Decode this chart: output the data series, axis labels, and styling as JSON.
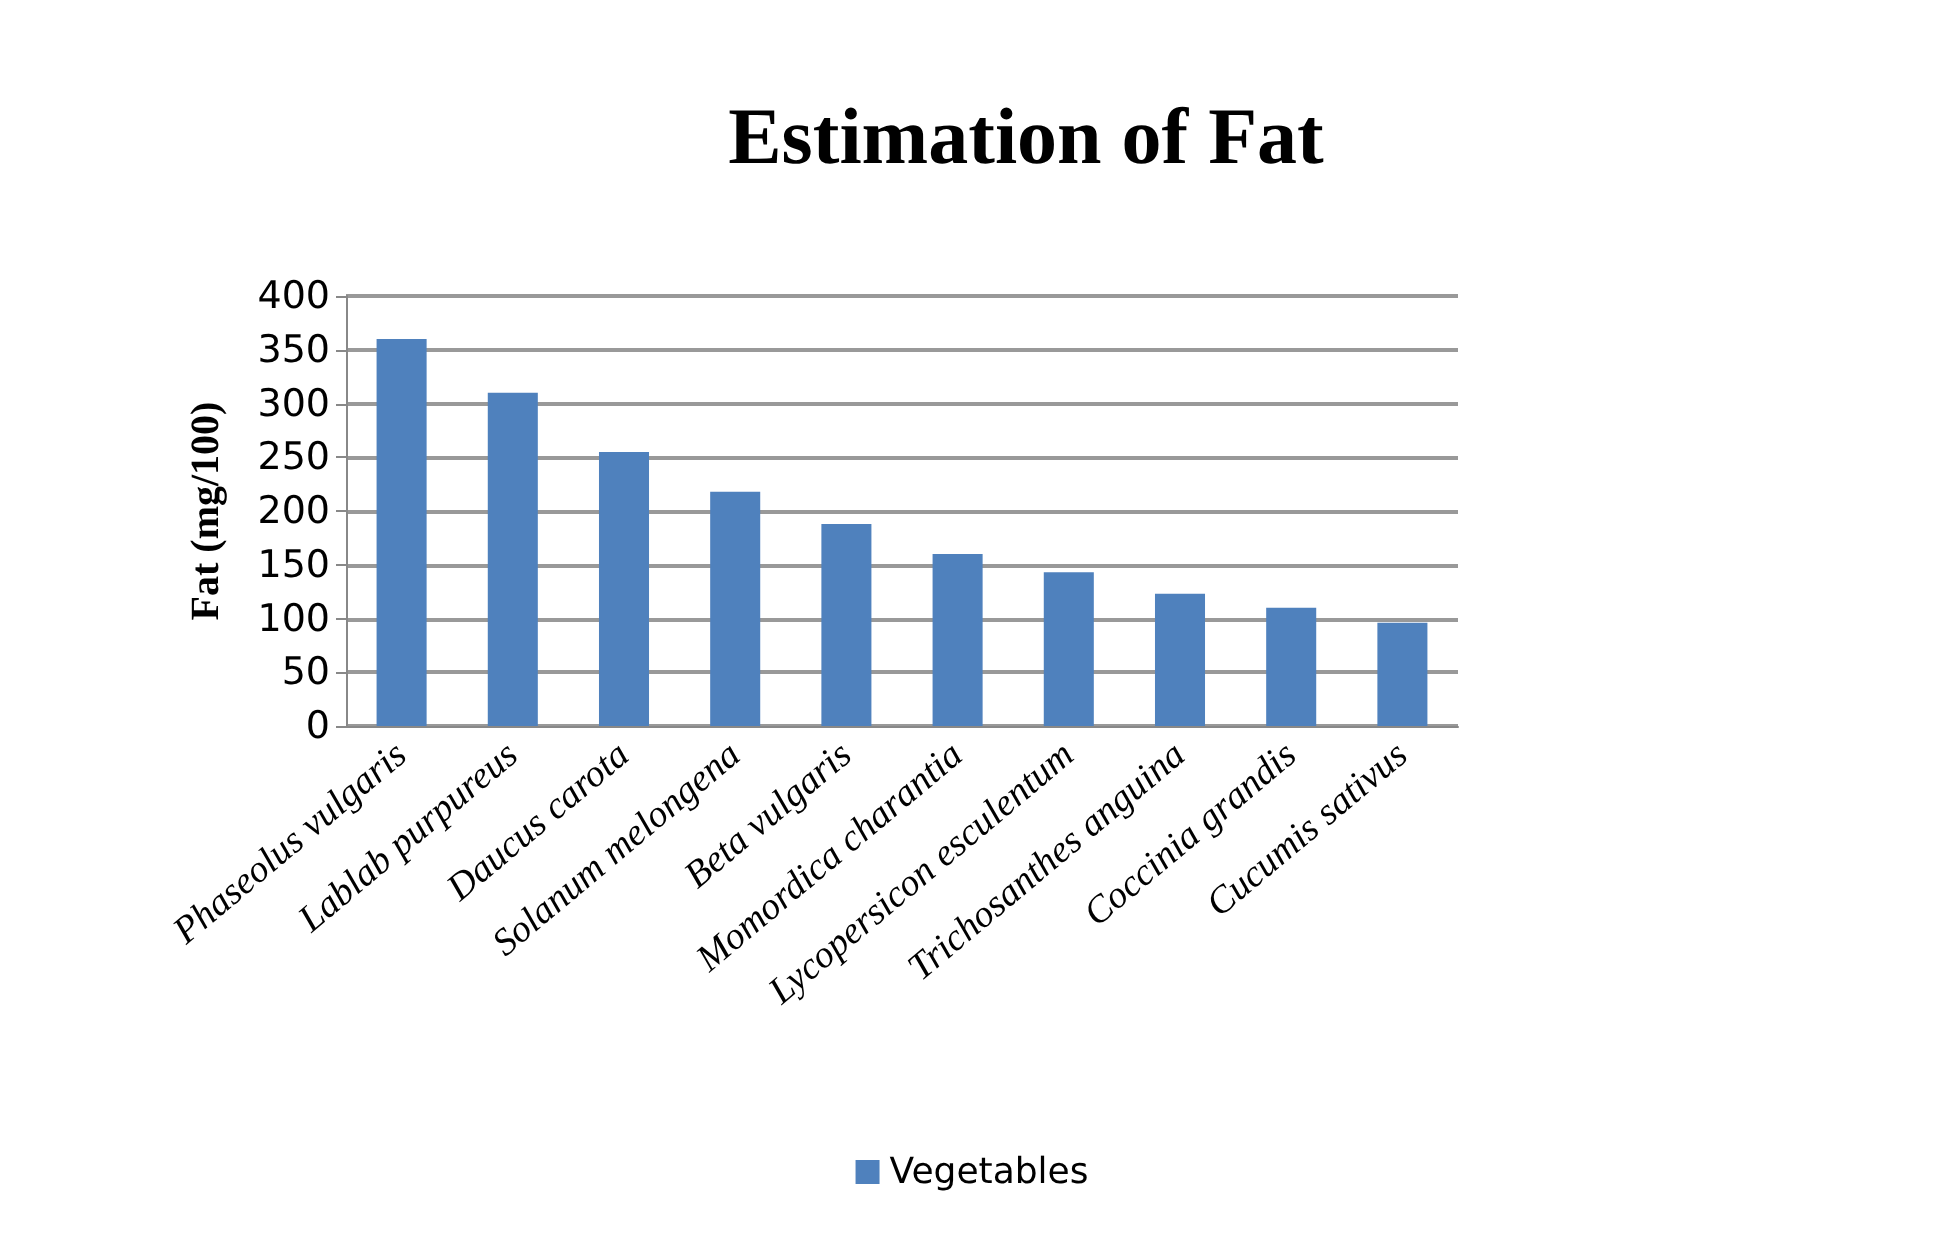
{
  "chart_data": {
    "type": "bar",
    "title": "Estimation of Fat",
    "ylabel": "Fat (mg/100)",
    "categories": [
      "Phaseolus vulgaris",
      "Lablab purpureus",
      "Daucus carota",
      "Solanum melongena",
      "Beta vulgaris",
      "Momordica charantia",
      "Lycopersicon esculentum",
      "Trichosanthes anguina",
      "Coccinia grandis",
      "Cucumis sativus"
    ],
    "series": [
      {
        "name": "Vegetables",
        "color": "#4f81bd",
        "values": [
          360,
          310,
          255,
          218,
          188,
          160,
          143,
          123,
          110,
          96
        ]
      }
    ],
    "ylim": [
      0,
      400
    ],
    "yticks": [
      0,
      50,
      100,
      150,
      200,
      250,
      300,
      350,
      400
    ],
    "grid": "y",
    "legend": "bottom"
  }
}
